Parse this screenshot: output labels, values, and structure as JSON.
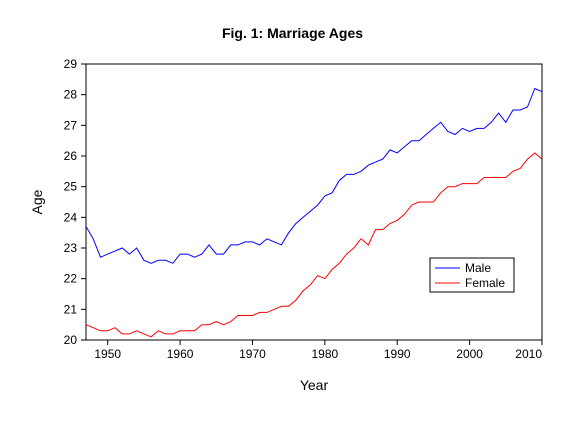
{
  "chart_data": {
    "type": "line",
    "title": "Fig. 1: Marriage Ages",
    "xlabel": "Year",
    "ylabel": "Age",
    "xlim": [
      1947,
      2010
    ],
    "ylim": [
      20,
      29
    ],
    "x_ticks": [
      1950,
      1960,
      1970,
      1980,
      1990,
      2000,
      2010
    ],
    "y_ticks": [
      20,
      21,
      22,
      23,
      24,
      25,
      26,
      27,
      28,
      29
    ],
    "grid": false,
    "legend_position": "lower-right",
    "x": [
      1947,
      1948,
      1949,
      1950,
      1951,
      1952,
      1953,
      1954,
      1955,
      1956,
      1957,
      1958,
      1959,
      1960,
      1961,
      1962,
      1963,
      1964,
      1965,
      1966,
      1967,
      1968,
      1969,
      1970,
      1971,
      1972,
      1973,
      1974,
      1975,
      1976,
      1977,
      1978,
      1979,
      1980,
      1981,
      1982,
      1983,
      1984,
      1985,
      1986,
      1987,
      1988,
      1989,
      1990,
      1991,
      1992,
      1993,
      1994,
      1995,
      1996,
      1997,
      1998,
      1999,
      2000,
      2001,
      2002,
      2003,
      2004,
      2005,
      2006,
      2007,
      2008,
      2009,
      2010
    ],
    "series": [
      {
        "name": "Male",
        "color": "#0000ff",
        "values": [
          23.7,
          23.3,
          22.7,
          22.8,
          22.9,
          23.0,
          22.8,
          23.0,
          22.6,
          22.5,
          22.6,
          22.6,
          22.5,
          22.8,
          22.8,
          22.7,
          22.8,
          23.1,
          22.8,
          22.8,
          23.1,
          23.1,
          23.2,
          23.2,
          23.1,
          23.3,
          23.2,
          23.1,
          23.5,
          23.8,
          24.0,
          24.2,
          24.4,
          24.7,
          24.8,
          25.2,
          25.4,
          25.4,
          25.5,
          25.7,
          25.8,
          25.9,
          26.2,
          26.1,
          26.3,
          26.5,
          26.5,
          26.7,
          26.9,
          27.1,
          26.8,
          26.7,
          26.9,
          26.8,
          26.9,
          26.9,
          27.1,
          27.4,
          27.1,
          27.5,
          27.5,
          27.6,
          28.2,
          28.1
        ]
      },
      {
        "name": "Female",
        "color": "#ff0000",
        "values": [
          20.5,
          20.4,
          20.3,
          20.3,
          20.4,
          20.2,
          20.2,
          20.3,
          20.2,
          20.1,
          20.3,
          20.2,
          20.2,
          20.3,
          20.3,
          20.3,
          20.5,
          20.5,
          20.6,
          20.5,
          20.6,
          20.8,
          20.8,
          20.8,
          20.9,
          20.9,
          21.0,
          21.1,
          21.1,
          21.3,
          21.6,
          21.8,
          22.1,
          22.0,
          22.3,
          22.5,
          22.8,
          23.0,
          23.3,
          23.1,
          23.6,
          23.6,
          23.8,
          23.9,
          24.1,
          24.4,
          24.5,
          24.5,
          24.5,
          24.8,
          25.0,
          25.0,
          25.1,
          25.1,
          25.1,
          25.3,
          25.3,
          25.3,
          25.3,
          25.5,
          25.6,
          25.9,
          26.1,
          25.9
        ]
      }
    ]
  }
}
